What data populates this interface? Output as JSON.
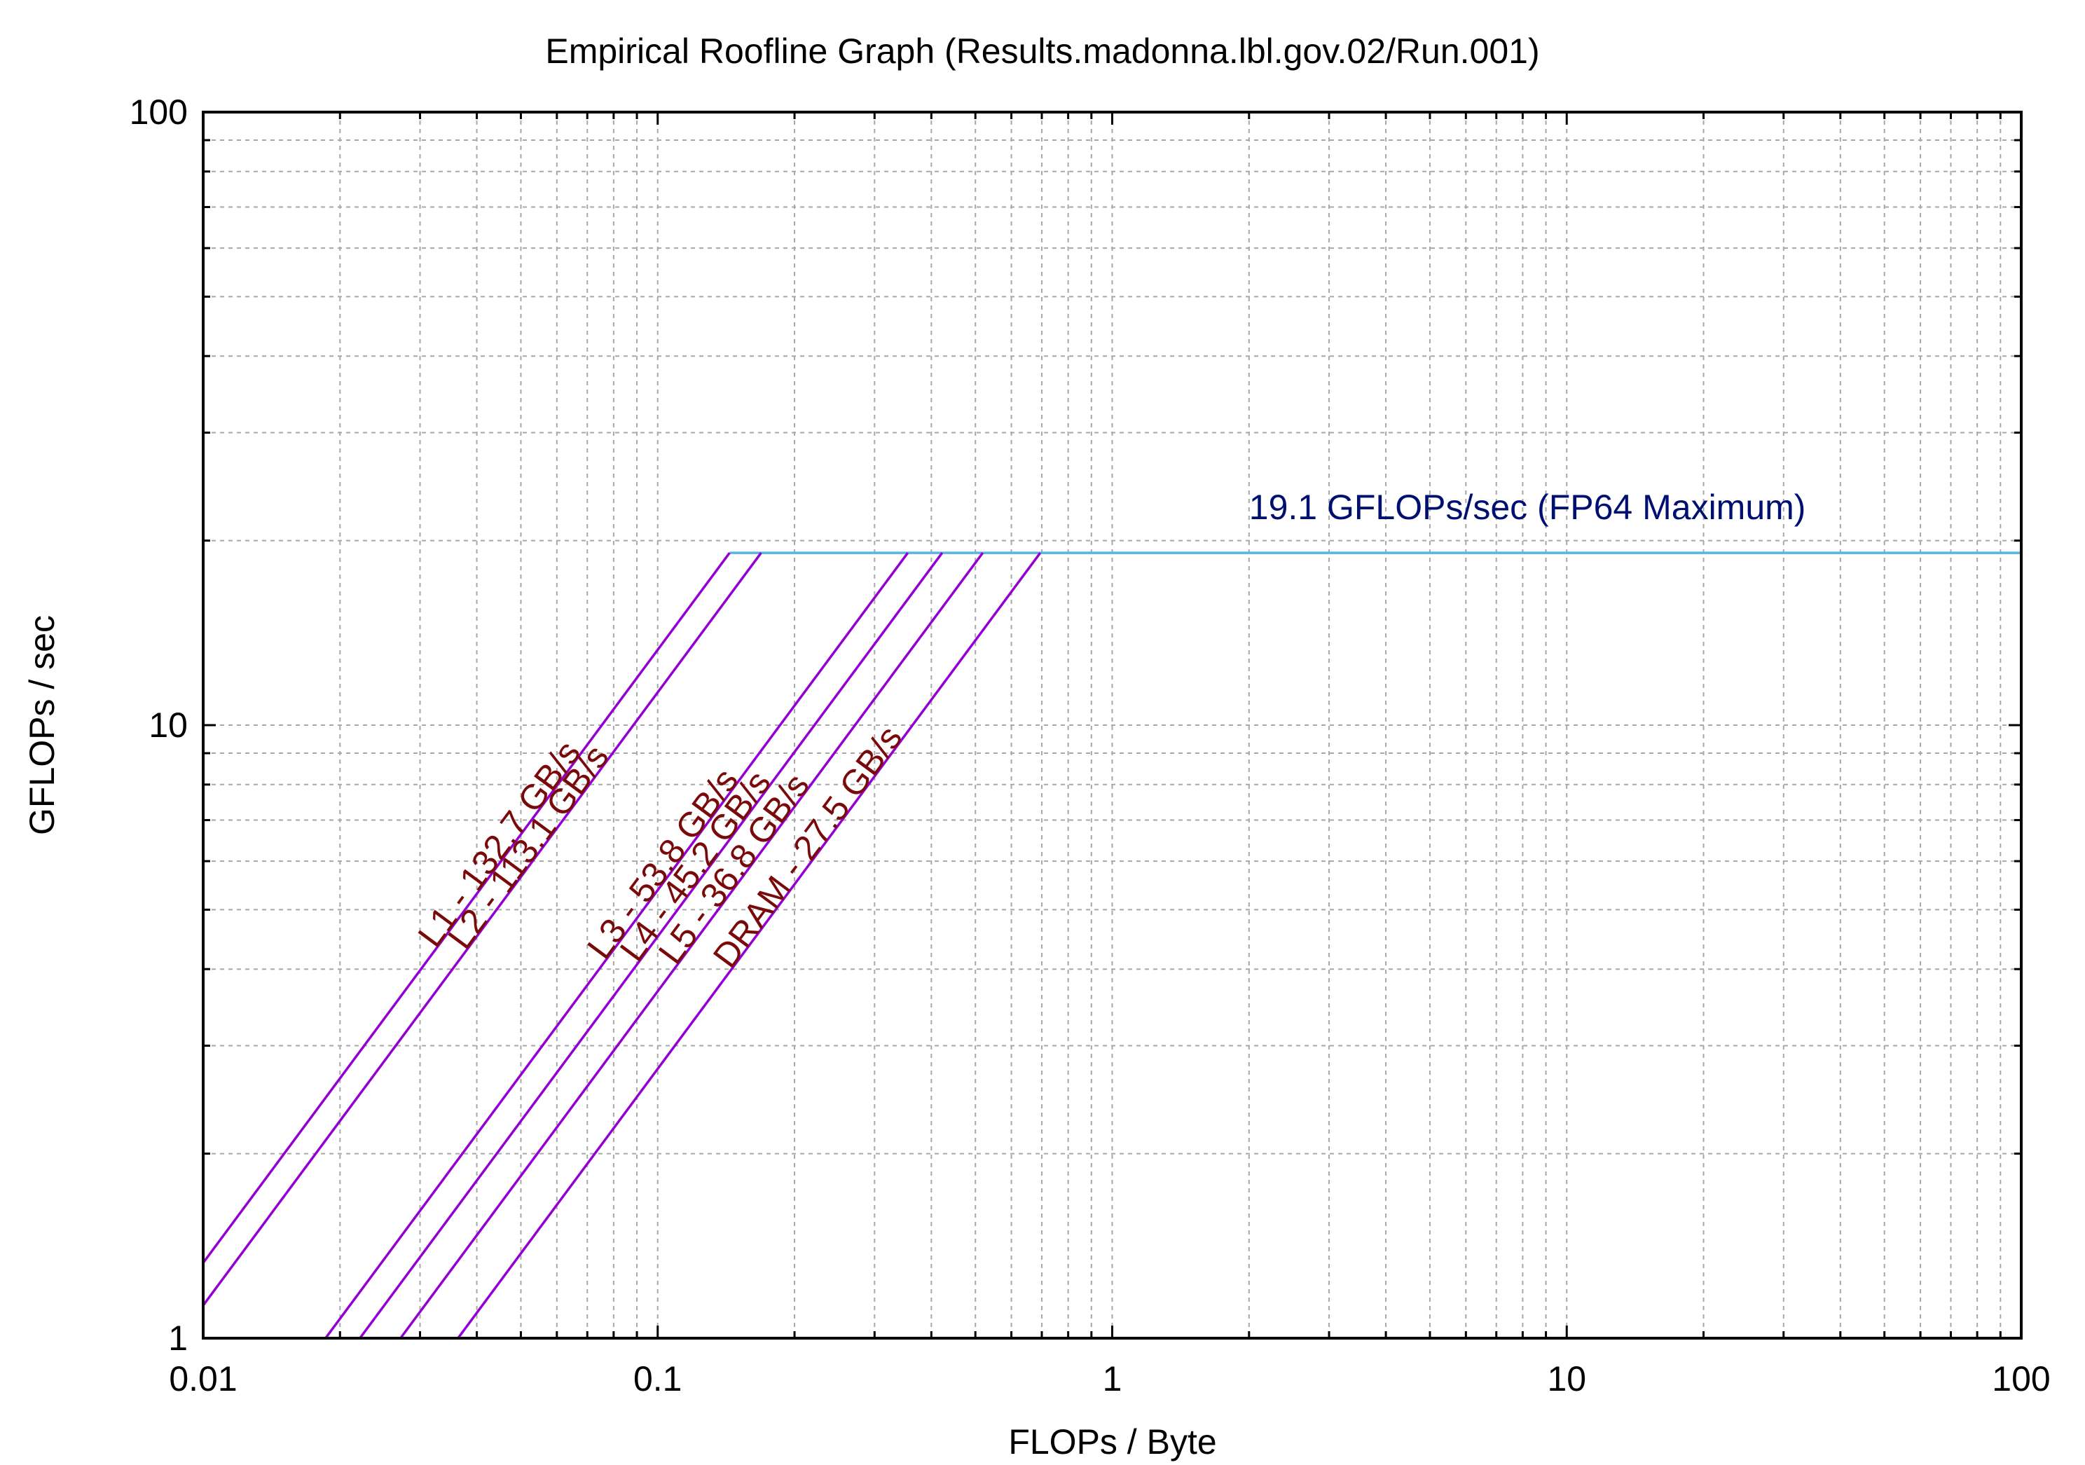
{
  "chart_data": {
    "type": "line",
    "title": "Empirical Roofline Graph (Results.madonna.lbl.gov.02/Run.001)",
    "xlabel": "FLOPs / Byte",
    "ylabel": "GFLOPs / sec",
    "x_scale": "log",
    "y_scale": "log",
    "xlim": [
      0.01,
      100
    ],
    "ylim": [
      1,
      100
    ],
    "x_ticks": [
      "0.01",
      "0.1",
      "1",
      "10",
      "100"
    ],
    "y_ticks": [
      "1",
      "10",
      "100"
    ],
    "grid": true,
    "peak": {
      "label": "19.1 GFLOPs/sec (FP64 Maximum)",
      "gflops": 19.1,
      "color": "#56b4e9"
    },
    "bandwidth_series": [
      {
        "name": "L1 - 132.7 GB/s",
        "gbs": 132.7
      },
      {
        "name": "L2 - 113.1 GB/s",
        "gbs": 113.1
      },
      {
        "name": "L3 - 53.8 GB/s",
        "gbs": 53.8
      },
      {
        "name": "L4 - 45.2 GB/s",
        "gbs": 45.2
      },
      {
        "name": "L5 - 36.8 GB/s",
        "gbs": 36.8
      },
      {
        "name": "DRAM - 27.5 GB/s",
        "gbs": 27.5
      }
    ],
    "line_colors": {
      "bandwidth": "#9400d3",
      "bandwidth_label": "#7a0a0a",
      "peak_label": "#001070"
    }
  }
}
